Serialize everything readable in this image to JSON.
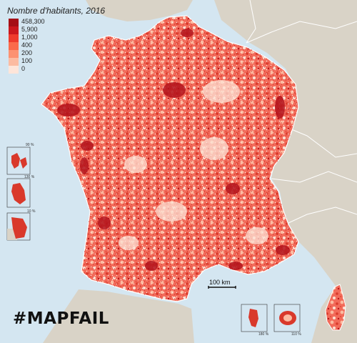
{
  "legend": {
    "title": "Nombre d'habitants, 2016",
    "items": [
      {
        "label": "458,300",
        "color": "#a50f15"
      },
      {
        "label": "5,900",
        "color": "#cb181d"
      },
      {
        "label": "1,000",
        "color": "#ef3b2c"
      },
      {
        "label": "400",
        "color": "#fb6a4a"
      },
      {
        "label": "200",
        "color": "#fc9272"
      },
      {
        "label": "100",
        "color": "#fcbba1"
      },
      {
        "label": "0",
        "color": "#fee5d9"
      }
    ]
  },
  "insets": {
    "guadeloupe_scale": "90 %",
    "martinique_scale": "130 %",
    "guyane_scale": "10 %",
    "mayotte_scale": "180 %",
    "reunion_scale": "110 %"
  },
  "scale_bar": {
    "label": "100 km"
  },
  "footer": {
    "text": "#MAPFAIL"
  },
  "colors": {
    "sea": "#d4e6f1",
    "neighbor_land": "#d9d3c7",
    "border": "#ffffff",
    "ramp_dark": "#a50f15",
    "ramp_light": "#fee5d9"
  }
}
